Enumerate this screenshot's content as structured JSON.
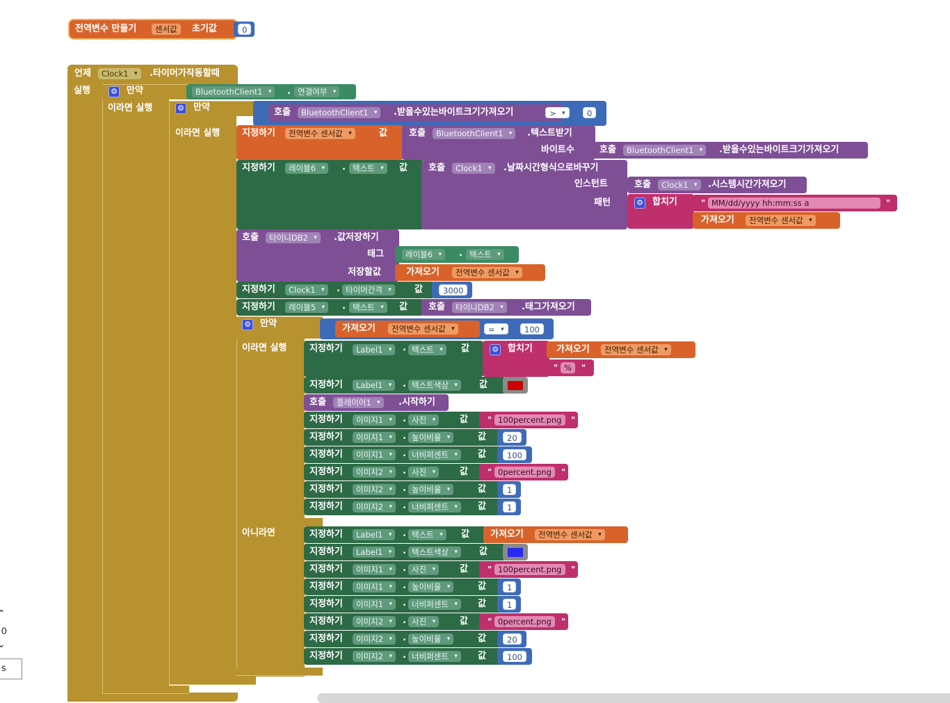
{
  "global_decl": {
    "title": "전역변수 만들기",
    "var_name": "센서값",
    "init_label": "초기값",
    "init_value": "0"
  },
  "event": {
    "when": "언제",
    "component": "Clock1",
    "event_name": ".타이머가작동할때",
    "do": "실행"
  },
  "if1": {
    "keyword": "만약",
    "then": "이라면 실행",
    "component": "BluetoothClient1",
    "prop": "연결여부"
  },
  "if2": {
    "keyword": "만약",
    "then": "이라면 실행",
    "call": "호출",
    "component": "BluetoothClient1",
    "method": ".받을수있는바이트크기가져오기",
    "op": ">",
    "value": "0"
  },
  "set_sensor": {
    "set": "지정하기",
    "var": "전역변수 센서값",
    "to": "값",
    "call": "호출",
    "component": "BluetoothClient1",
    "method": ".텍스트받기",
    "arg_label": "바이트수",
    "call2": "호출",
    "component2": "BluetoothClient1",
    "method2": ".받을수있는바이트크기가져오기"
  },
  "set_label6": {
    "set": "지정하기",
    "component": "레이블6",
    "prop": "텍스트",
    "to": "값",
    "call": "호출",
    "clock": "Clock1",
    "method": ".날짜시간형식으로바꾸기",
    "instant_label": "인스턴트",
    "call2": "호출",
    "clock2": "Clock1",
    "method2": ".시스템시간가져오기",
    "pattern_label": "패턴",
    "join": "합치기",
    "pattern": "MM/dd/yyyy hh:mm:ss a",
    "get": "가져오기",
    "get_var": "전역변수 센서값"
  },
  "store": {
    "call": "호출",
    "component": "타이니DB2",
    "method": ".값저장하기",
    "tag_label": "태그",
    "tag_component": "레이블6",
    "tag_prop": "텍스트",
    "value_label": "저장할값",
    "get": "가져오기",
    "get_var": "전역변수 센서값"
  },
  "set_timer": {
    "set": "지정하기",
    "component": "Clock1",
    "prop": "타이머간격",
    "to": "값",
    "value": "3000"
  },
  "set_label5": {
    "set": "지정하기",
    "component": "레이블5",
    "prop": "텍스트",
    "to": "값",
    "call": "호출",
    "db": "타이니DB2",
    "method": ".태그가져오기"
  },
  "if3": {
    "keyword": "만약",
    "get": "가져오기",
    "var": "전역변수 센서값",
    "op": "=",
    "value": "100",
    "then": "이라면 실행",
    "else": "아니라면"
  },
  "then_rows": {
    "label1_text": {
      "set": "지정하기",
      "component": "Label1",
      "prop": "텍스트",
      "to": "값",
      "join": "합치기",
      "get": "가져오기",
      "get_var": "전역변수 센서값",
      "suffix": "%"
    },
    "label1_color": {
      "set": "지정하기",
      "component": "Label1",
      "prop": "텍스트색상",
      "to": "값",
      "color": "#cc0000"
    },
    "player": {
      "call": "호출",
      "component": "플레이어1",
      "method": ".시작하기"
    },
    "rows": [
      {
        "set": "지정하기",
        "component": "이미지1",
        "prop": "사진",
        "to": "값",
        "value": "100percent.png",
        "kind": "text"
      },
      {
        "set": "지정하기",
        "component": "이미지1",
        "prop": "높이비율",
        "to": "값",
        "value": "20",
        "kind": "num"
      },
      {
        "set": "지정하기",
        "component": "이미지1",
        "prop": "너비퍼센트",
        "to": "값",
        "value": "100",
        "kind": "num"
      },
      {
        "set": "지정하기",
        "component": "이미지2",
        "prop": "사진",
        "to": "값",
        "value": "0percent.png",
        "kind": "text"
      },
      {
        "set": "지정하기",
        "component": "이미지2",
        "prop": "높이비율",
        "to": "값",
        "value": "1",
        "kind": "num"
      },
      {
        "set": "지정하기",
        "component": "이미지2",
        "prop": "너비퍼센트",
        "to": "값",
        "value": "1",
        "kind": "num"
      }
    ]
  },
  "else_rows": {
    "label1_text": {
      "set": "지정하기",
      "component": "Label1",
      "prop": "텍스트",
      "to": "값",
      "get": "가져오기",
      "get_var": "전역변수 센서값"
    },
    "label1_color": {
      "set": "지정하기",
      "component": "Label1",
      "prop": "텍스트색상",
      "to": "값",
      "color": "#2a2af0"
    },
    "rows": [
      {
        "set": "지정하기",
        "component": "이미지1",
        "prop": "사진",
        "to": "값",
        "value": "100percent.png",
        "kind": "text"
      },
      {
        "set": "지정하기",
        "component": "이미지1",
        "prop": "높이비율",
        "to": "값",
        "value": "1",
        "kind": "num"
      },
      {
        "set": "지정하기",
        "component": "이미지1",
        "prop": "너비퍼센트",
        "to": "값",
        "value": "1",
        "kind": "num"
      },
      {
        "set": "지정하기",
        "component": "이미지2",
        "prop": "사진",
        "to": "값",
        "value": "0percent.png",
        "kind": "text"
      },
      {
        "set": "지정하기",
        "component": "이미지2",
        "prop": "높이비율",
        "to": "값",
        "value": "20",
        "kind": "num"
      },
      {
        "set": "지정하기",
        "component": "이미지2",
        "prop": "너비퍼센트",
        "to": "값",
        "value": "100",
        "kind": "num"
      }
    ]
  },
  "zoom": {
    "value": "0",
    "unit": "s"
  }
}
